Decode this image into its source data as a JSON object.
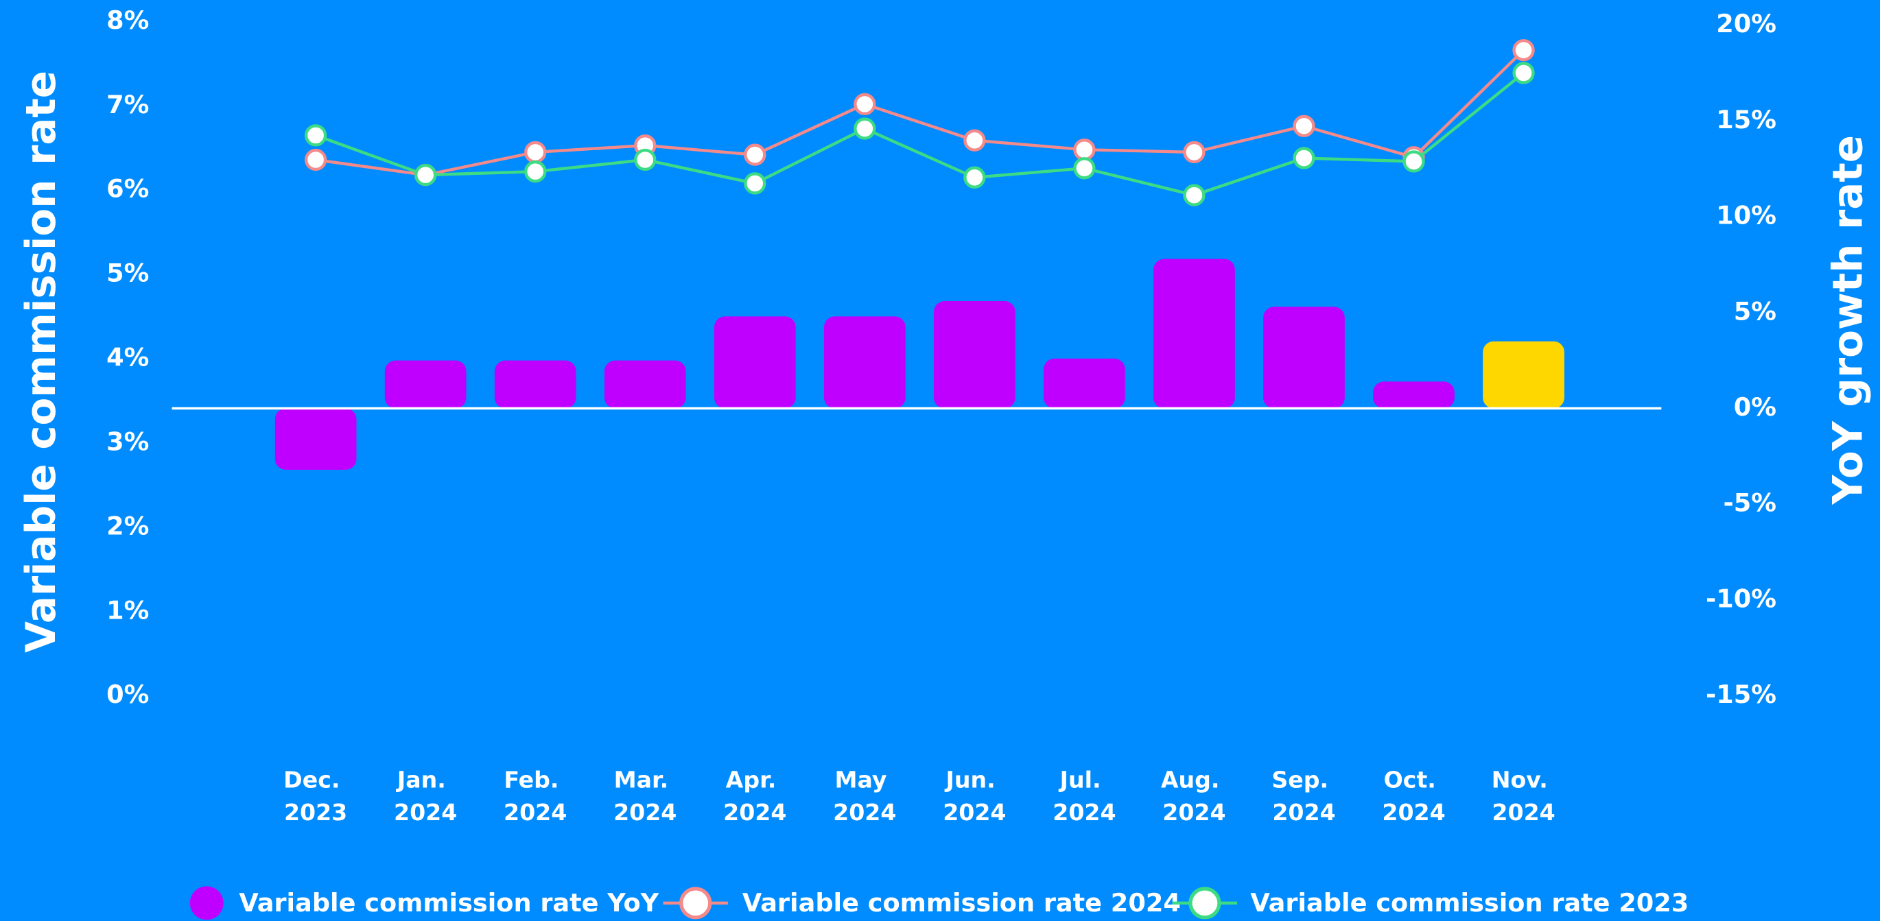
{
  "chart_data": {
    "type": "bar",
    "categories": [
      "Dec. 2023",
      "Jan. 2024",
      "Feb. 2024",
      "Mar. 2024",
      "Apr. 2024",
      "May 2024",
      "Jun. 2024",
      "Jul. 2024",
      "Aug. 2024",
      "Sep. 2024",
      "Oct. 2024",
      "Nov. 2024"
    ],
    "y_label": "Variable commission rate",
    "y2_label": "YoY growth rate",
    "ylim": [
      0,
      8
    ],
    "yticks": [
      {
        "value": 0,
        "label": "0%"
      },
      {
        "value": 1,
        "label": "1%"
      },
      {
        "value": 2,
        "label": "2%"
      },
      {
        "value": 3,
        "label": "3%"
      },
      {
        "value": 4,
        "label": "4%"
      },
      {
        "value": 5,
        "label": "5%"
      },
      {
        "value": 6,
        "label": "6%"
      },
      {
        "value": 7,
        "label": "7%"
      },
      {
        "value": 8,
        "label": "8%"
      }
    ],
    "y2lim": [
      -15,
      20
    ],
    "y2ticks": [
      {
        "value": -15,
        "label": "-15%"
      },
      {
        "value": -10,
        "label": "-10%"
      },
      {
        "value": -5,
        "label": "-5%"
      },
      {
        "value": 0,
        "label": "0%"
      },
      {
        "value": 5,
        "label": "5%"
      },
      {
        "value": 10,
        "label": "10%"
      },
      {
        "value": 15,
        "label": "15%"
      },
      {
        "value": 20,
        "label": "20%"
      }
    ],
    "series": [
      {
        "name": "Variable commission rate YoY",
        "type": "bar",
        "axis": "y2",
        "color": "#c000ff",
        "colors": [
          "#c000ff",
          "#c000ff",
          "#c000ff",
          "#c000ff",
          "#c000ff",
          "#c000ff",
          "#c000ff",
          "#c000ff",
          "#c000ff",
          "#c000ff",
          "#c000ff",
          "#ffd700"
        ],
        "values": [
          -3.2,
          2.5,
          2.5,
          2.5,
          4.8,
          4.8,
          5.6,
          2.6,
          7.8,
          5.3,
          1.4,
          3.5
        ]
      },
      {
        "name": "Variable commission rate 2024",
        "type": "line",
        "color": "#f48a8a",
        "values": [
          6.36,
          6.18,
          6.45,
          6.53,
          6.42,
          7.02,
          6.59,
          6.48,
          6.45,
          6.76,
          6.39,
          7.66
        ]
      },
      {
        "name": "Variable commission rate 2023",
        "type": "line",
        "color": "#3ddc84",
        "values": [
          6.65,
          6.18,
          6.22,
          6.36,
          6.08,
          6.73,
          6.15,
          6.26,
          5.94,
          6.38,
          6.34,
          7.39
        ]
      }
    ],
    "legend": "bottom"
  }
}
